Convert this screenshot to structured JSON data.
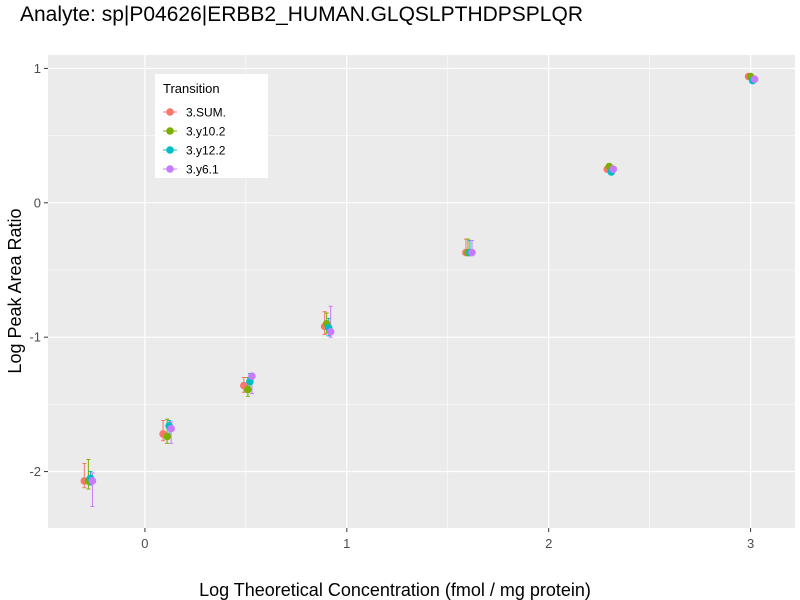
{
  "chart_data": {
    "type": "scatter",
    "title": "Analyte: sp|P04626|ERBB2_HUMAN.GLQSLPTHDPSPLQR",
    "xlabel": "Log Theoretical Concentration (fmol / mg protein)",
    "ylabel": "Log Peak Area Ratio",
    "xlim": [
      -0.48,
      3.22
    ],
    "ylim": [
      -2.42,
      1.1
    ],
    "x_ticks": [
      {
        "value": 0,
        "label": "0"
      },
      {
        "value": 1,
        "label": "1"
      },
      {
        "value": 2,
        "label": "2"
      },
      {
        "value": 3,
        "label": "3"
      }
    ],
    "y_ticks": [
      {
        "value": 1,
        "label": "1"
      },
      {
        "value": 0,
        "label": "0"
      },
      {
        "value": -1,
        "label": "-1"
      },
      {
        "value": -2,
        "label": "-2"
      }
    ],
    "grid": true,
    "legend": {
      "title": "Transition",
      "placement": "top-left"
    },
    "error_bars": true,
    "series": [
      {
        "name": "3.SUM.",
        "color": "#F8766D",
        "x": [
          -0.3,
          0.09,
          0.49,
          0.89,
          1.59,
          2.29,
          2.99
        ],
        "y": [
          -2.07,
          -1.72,
          -1.36,
          -0.92,
          -0.37,
          0.25,
          0.94
        ],
        "err_low": [
          -2.12,
          -1.77,
          -1.41,
          -0.98,
          -0.38,
          0.24,
          0.93
        ],
        "err_high": [
          -1.94,
          -1.62,
          -1.3,
          -0.81,
          -0.27,
          0.26,
          0.95
        ]
      },
      {
        "name": "3.y10.2",
        "color": "#7CAE00",
        "x": [
          -0.28,
          0.11,
          0.51,
          0.9,
          1.6,
          2.3,
          3.0
        ],
        "y": [
          -2.07,
          -1.74,
          -1.39,
          -0.9,
          -0.37,
          0.27,
          0.94
        ],
        "err_low": [
          -2.13,
          -1.79,
          -1.44,
          -0.97,
          -0.38,
          0.26,
          0.93
        ],
        "err_high": [
          -1.91,
          -1.61,
          -1.3,
          -0.82,
          -0.27,
          0.28,
          0.95
        ]
      },
      {
        "name": "3.y12.2",
        "color": "#00BFC4",
        "x": [
          -0.27,
          0.12,
          0.52,
          0.91,
          1.61,
          2.31,
          3.01
        ],
        "y": [
          -2.05,
          -1.66,
          -1.33,
          -0.93,
          -0.37,
          0.23,
          0.91
        ],
        "err_low": [
          -2.1,
          -1.72,
          -1.39,
          -0.99,
          -0.38,
          0.22,
          0.9
        ],
        "err_high": [
          -2.0,
          -1.62,
          -1.27,
          -0.86,
          -0.28,
          0.24,
          0.92
        ]
      },
      {
        "name": "3.y6.1",
        "color": "#C77CFF",
        "x": [
          -0.26,
          0.13,
          0.53,
          0.92,
          1.62,
          2.32,
          3.02
        ],
        "y": [
          -2.07,
          -1.68,
          -1.29,
          -0.96,
          -0.37,
          0.25,
          0.92
        ],
        "err_low": [
          -2.26,
          -1.79,
          -1.42,
          -1.0,
          -0.38,
          0.24,
          0.91
        ],
        "err_high": [
          -2.01,
          -1.63,
          -1.28,
          -0.77,
          -0.28,
          0.26,
          0.93
        ]
      }
    ]
  }
}
